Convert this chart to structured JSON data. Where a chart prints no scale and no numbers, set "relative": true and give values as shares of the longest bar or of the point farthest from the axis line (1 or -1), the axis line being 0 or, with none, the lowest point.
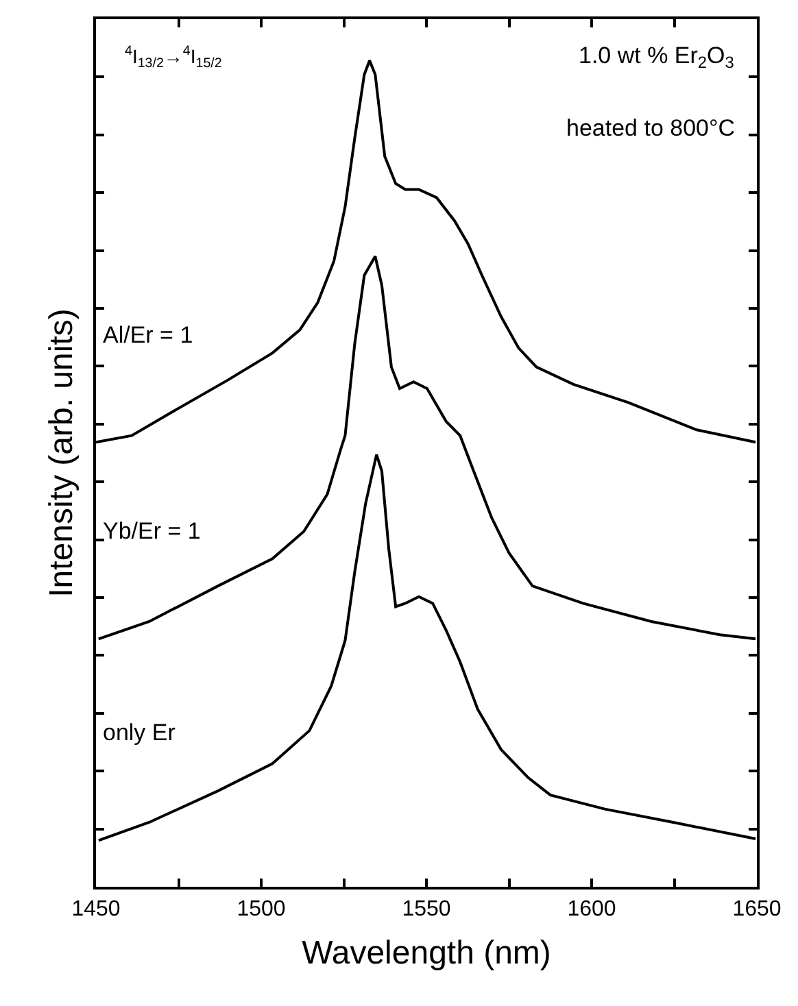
{
  "chart_data": {
    "type": "line",
    "relative": true,
    "xlabel": "Wavelength (nm)",
    "ylabel": "Intensity (arb. units)",
    "xlim": [
      1450,
      1650
    ],
    "xticks": [
      1450,
      {
        "value": 1475,
        "label": null
      },
      1500,
      {
        "value": 1525,
        "label": null
      },
      1550,
      {
        "value": 1575,
        "label": null
      },
      1600,
      {
        "value": 1625,
        "label": null
      },
      1650
    ],
    "grid": false,
    "legend": "left",
    "marker": "none",
    "line_style": "solid",
    "annotations": [
      "$^{4}$I$_{13/2}$→$^{4}$I$_{15/2}$",
      "1.0 wt % Er$_{2}$O$_{3}$",
      "heated to 800°C"
    ],
    "series": [
      {
        "name": "Al/Er = 1",
        "color": "#000000",
        "x": [
          1450,
          1460.8,
          1473.2,
          1489.8,
          1503.4,
          1511.7,
          1517.1,
          1522.0,
          1525.4,
          1528.3,
          1531.2,
          1532.8,
          1534.5,
          1537.4,
          1540.7,
          1543.6,
          1547.7,
          1553.1,
          1558.5,
          1562.6,
          1566.8,
          1572.6,
          1577.9,
          1583.3,
          1594.5,
          1611.1,
          1631.8,
          1649.6
        ],
        "values": [
          0.538,
          0.546,
          0.575,
          0.613,
          0.646,
          0.674,
          0.707,
          0.757,
          0.823,
          0.906,
          0.983,
          1.0,
          0.983,
          0.884,
          0.851,
          0.844,
          0.844,
          0.834,
          0.806,
          0.778,
          0.74,
          0.69,
          0.652,
          0.629,
          0.608,
          0.586,
          0.553,
          0.538
        ]
      },
      {
        "name": "Yb/Er = 1",
        "color": "#000000",
        "x": [
          1450.8,
          1466.1,
          1486.9,
          1503.4,
          1512.9,
          1520.0,
          1524.1,
          1525.4,
          1528.3,
          1531.2,
          1534.5,
          1536.5,
          1539.4,
          1541.9,
          1546.1,
          1550.2,
          1556.0,
          1560.2,
          1564.3,
          1569.7,
          1575.0,
          1582.1,
          1597.4,
          1618.1,
          1638.8,
          1649.6
        ],
        "values": [
          0.3,
          0.321,
          0.364,
          0.397,
          0.43,
          0.475,
          0.53,
          0.546,
          0.657,
          0.74,
          0.763,
          0.728,
          0.629,
          0.603,
          0.611,
          0.603,
          0.563,
          0.546,
          0.503,
          0.447,
          0.404,
          0.364,
          0.343,
          0.321,
          0.305,
          0.3
        ]
      },
      {
        "name": "only Er",
        "color": "#000000",
        "x": [
          1450.8,
          1466.1,
          1486.9,
          1503.4,
          1514.6,
          1521.2,
          1525.4,
          1528.3,
          1531.6,
          1534.9,
          1536.5,
          1538.6,
          1540.7,
          1543.6,
          1547.7,
          1551.9,
          1556.0,
          1560.2,
          1565.5,
          1572.6,
          1580.8,
          1587.5,
          1604.0,
          1624.7,
          1649.6
        ],
        "values": [
          0.056,
          0.078,
          0.116,
          0.149,
          0.189,
          0.243,
          0.298,
          0.381,
          0.464,
          0.523,
          0.503,
          0.409,
          0.339,
          0.343,
          0.351,
          0.343,
          0.31,
          0.272,
          0.215,
          0.166,
          0.132,
          0.111,
          0.094,
          0.078,
          0.058
        ]
      }
    ]
  }
}
